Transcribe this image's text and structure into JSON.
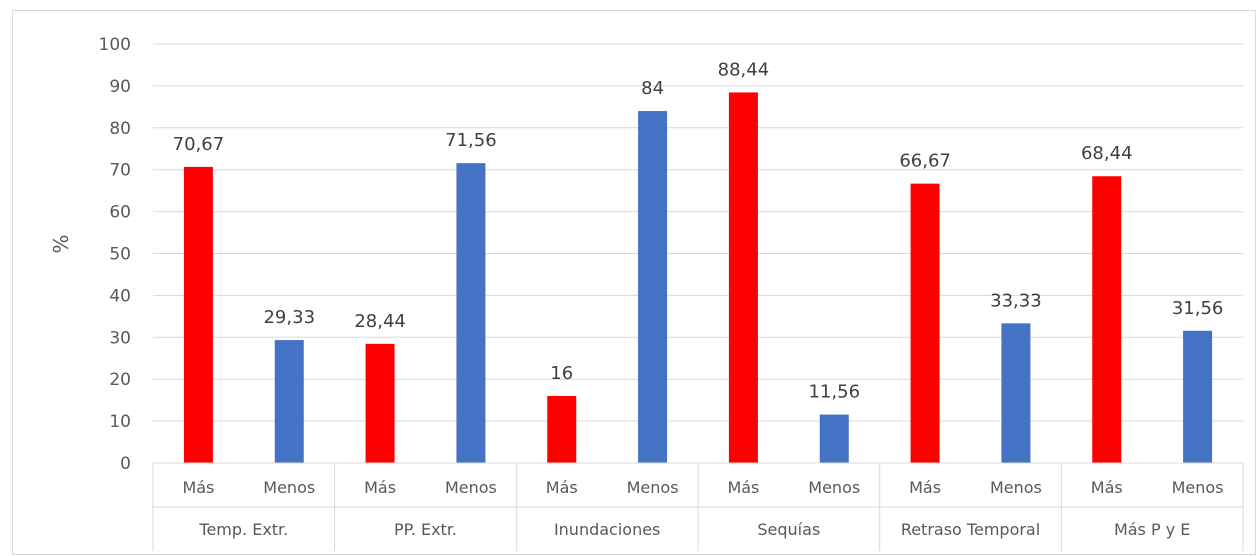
{
  "chart_data": {
    "type": "bar",
    "title": "",
    "xlabel": "",
    "ylabel": "%",
    "ylim": [
      0,
      100
    ],
    "yticks": [
      "0",
      "10",
      "20",
      "30",
      "40",
      "50",
      "60",
      "70",
      "80",
      "90",
      "100"
    ],
    "grid": true,
    "legend": "none",
    "groups": [
      {
        "name": "Temp. Extr.",
        "bars": [
          {
            "category": "Más",
            "value": 70.67,
            "label": "70,67",
            "color": "#ff0000"
          },
          {
            "category": "Menos",
            "value": 29.33,
            "label": "29,33",
            "color": "#4472c4"
          }
        ]
      },
      {
        "name": "PP. Extr.",
        "bars": [
          {
            "category": "Más",
            "value": 28.44,
            "label": "28,44",
            "color": "#ff0000"
          },
          {
            "category": "Menos",
            "value": 71.56,
            "label": "71,56",
            "color": "#4472c4"
          }
        ]
      },
      {
        "name": "Inundaciones",
        "bars": [
          {
            "category": "Más",
            "value": 16,
            "label": "16",
            "color": "#ff0000"
          },
          {
            "category": "Menos",
            "value": 84,
            "label": "84",
            "color": "#4472c4"
          }
        ]
      },
      {
        "name": "Sequías",
        "bars": [
          {
            "category": "Más",
            "value": 88.44,
            "label": "88,44",
            "color": "#ff0000"
          },
          {
            "category": "Menos",
            "value": 11.56,
            "label": "11,56",
            "color": "#4472c4"
          }
        ]
      },
      {
        "name": "Retraso Temporal",
        "bars": [
          {
            "category": "Más",
            "value": 66.67,
            "label": "66,67",
            "color": "#ff0000"
          },
          {
            "category": "Menos",
            "value": 33.33,
            "label": "33,33",
            "color": "#4472c4"
          }
        ]
      },
      {
        "name": "Más P y E",
        "bars": [
          {
            "category": "Más",
            "value": 68.44,
            "label": "68,44",
            "color": "#ff0000"
          },
          {
            "category": "Menos",
            "value": 31.56,
            "label": "31,56",
            "color": "#4472c4"
          }
        ]
      }
    ]
  }
}
